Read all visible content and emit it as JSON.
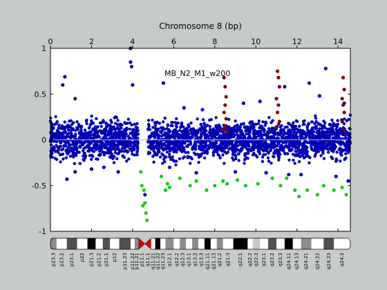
{
  "chart_data": {
    "type": "scatter",
    "title": "Chromosome 8 (bp)",
    "annotation": "MB_N2_M1_w200",
    "xlim": [
      0,
      14.6
    ],
    "ylim": [
      -1,
      1
    ],
    "x_ticks": [
      0,
      2,
      4,
      6,
      8,
      10,
      12,
      14
    ],
    "y_ticks": [
      {
        "value": 1,
        "label": "1"
      },
      {
        "value": 0.5,
        "label": "0.5"
      },
      {
        "value": 0,
        "label": "0"
      },
      {
        "value": -0.5,
        "label": "-0.5"
      },
      {
        "value": -1,
        "label": "-1"
      }
    ],
    "grid": false,
    "zero_line": true,
    "series": [
      {
        "color": "#0000b4",
        "points": [
          [
            0.7,
            0.69
          ],
          [
            0.6,
            0.6
          ],
          [
            1.2,
            0.45
          ],
          [
            3.9,
            1.0
          ],
          [
            3.9,
            0.85
          ],
          [
            3.95,
            0.8
          ],
          [
            4.0,
            0.6
          ],
          [
            5.5,
            0.62
          ],
          [
            0.8,
            -0.43
          ],
          [
            1.2,
            -0.35
          ],
          [
            2.0,
            -0.32
          ],
          [
            2.6,
            -0.3
          ],
          [
            3.3,
            -0.35
          ],
          [
            4.6,
            -0.6
          ],
          [
            5.8,
            -0.3
          ],
          [
            6.5,
            0.35
          ],
          [
            7.4,
            0.33
          ],
          [
            9.4,
            0.4
          ],
          [
            10.2,
            0.42
          ],
          [
            11.4,
            0.58
          ],
          [
            12.6,
            0.62
          ],
          [
            13.4,
            0.78
          ],
          [
            13.1,
            0.48
          ],
          [
            14.3,
            0.4
          ],
          [
            14.5,
            -0.45
          ],
          [
            13.9,
            -0.4
          ],
          [
            12.2,
            -0.38
          ],
          [
            7.1,
            -0.36
          ],
          [
            9.0,
            -0.35
          ],
          [
            10.5,
            -0.36
          ],
          [
            11.6,
            -0.38
          ]
        ]
      },
      {
        "color": "#19c819",
        "points": [
          [
            4.4,
            -0.35
          ],
          [
            4.45,
            -0.5
          ],
          [
            4.5,
            -0.72
          ],
          [
            4.55,
            -0.55
          ],
          [
            4.6,
            -0.69
          ],
          [
            4.65,
            -0.8
          ],
          [
            4.7,
            -0.88
          ],
          [
            5.4,
            -0.4
          ],
          [
            5.6,
            -0.55
          ],
          [
            5.7,
            -0.48
          ],
          [
            5.8,
            -0.52
          ],
          [
            6.3,
            -0.42
          ],
          [
            6.8,
            -0.5
          ],
          [
            7.1,
            -0.45
          ],
          [
            7.6,
            -0.55
          ],
          [
            8.0,
            -0.5
          ],
          [
            8.4,
            -0.45
          ],
          [
            8.6,
            -0.48
          ],
          [
            9.1,
            -0.44
          ],
          [
            9.5,
            -0.5
          ],
          [
            10.1,
            -0.48
          ],
          [
            10.8,
            -0.42
          ],
          [
            11.2,
            -0.5
          ],
          [
            11.5,
            -0.42
          ],
          [
            11.9,
            -0.55
          ],
          [
            12.1,
            -0.62
          ],
          [
            12.5,
            -0.55
          ],
          [
            13.0,
            -0.6
          ],
          [
            13.3,
            -0.5
          ],
          [
            13.8,
            -0.55
          ],
          [
            14.2,
            -0.52
          ],
          [
            14.4,
            -0.6
          ]
        ]
      },
      {
        "color": "#800000",
        "points": [
          [
            8.45,
            0.68
          ],
          [
            8.5,
            0.58
          ],
          [
            8.55,
            0.47
          ],
          [
            8.5,
            0.38
          ],
          [
            8.45,
            0.3
          ],
          [
            8.55,
            0.23
          ],
          [
            8.5,
            0.15
          ],
          [
            8.42,
            0.12
          ],
          [
            8.6,
            0.09
          ],
          [
            11.05,
            0.75
          ],
          [
            11.1,
            0.68
          ],
          [
            11.15,
            0.58
          ],
          [
            11.0,
            0.45
          ],
          [
            11.1,
            0.38
          ],
          [
            11.05,
            0.3
          ],
          [
            11.15,
            0.2
          ],
          [
            11.0,
            0.14
          ],
          [
            14.25,
            0.68
          ],
          [
            14.3,
            0.55
          ],
          [
            14.2,
            0.45
          ],
          [
            14.25,
            0.38
          ],
          [
            14.3,
            0.3
          ],
          [
            14.2,
            0.2
          ],
          [
            14.3,
            0.1
          ]
        ]
      }
    ],
    "ideogram": {
      "centromere_x": 4.6,
      "bands": [
        {
          "label": "p23.3",
          "start": 0.0,
          "end": 0.3,
          "stain": "gpos50"
        },
        {
          "label": "p23.2",
          "start": 0.3,
          "end": 0.8,
          "stain": "gneg"
        },
        {
          "label": "p23.1",
          "start": 0.8,
          "end": 1.3,
          "stain": "gpos75"
        },
        {
          "label": "p22",
          "start": 1.3,
          "end": 1.8,
          "stain": "gneg"
        },
        {
          "label": "p21.3",
          "start": 1.8,
          "end": 2.2,
          "stain": "gpos100"
        },
        {
          "label": "p21.2",
          "start": 2.2,
          "end": 2.55,
          "stain": "gneg"
        },
        {
          "label": "p21.1",
          "start": 2.55,
          "end": 2.9,
          "stain": "gpos75"
        },
        {
          "label": "p12",
          "start": 2.9,
          "end": 3.35,
          "stain": "gneg"
        },
        {
          "label": "p11.23",
          "start": 3.35,
          "end": 3.9,
          "stain": "gpos75"
        },
        {
          "label": "p11.22",
          "start": 3.9,
          "end": 4.1,
          "stain": "gneg"
        },
        {
          "label": "p11.21",
          "start": 4.1,
          "end": 4.3,
          "stain": "gpos50"
        },
        {
          "label": "p11.1",
          "start": 4.3,
          "end": 4.6,
          "stain": "acen"
        },
        {
          "label": "q11.1",
          "start": 4.6,
          "end": 4.9,
          "stain": "acen"
        },
        {
          "label": "q11.21",
          "start": 4.9,
          "end": 5.1,
          "stain": "gneg"
        },
        {
          "label": "q11.22",
          "start": 5.1,
          "end": 5.35,
          "stain": "gpos100"
        },
        {
          "label": "q11.23",
          "start": 5.35,
          "end": 5.6,
          "stain": "gneg"
        },
        {
          "label": "q12.1",
          "start": 5.6,
          "end": 6.0,
          "stain": "gpos50"
        },
        {
          "label": "q12.2",
          "start": 6.0,
          "end": 6.3,
          "stain": "gneg"
        },
        {
          "label": "q12.3",
          "start": 6.3,
          "end": 6.6,
          "stain": "gpos50"
        },
        {
          "label": "q13.1",
          "start": 6.6,
          "end": 6.9,
          "stain": "gneg"
        },
        {
          "label": "q13.2",
          "start": 6.9,
          "end": 7.2,
          "stain": "gpos50"
        },
        {
          "label": "q13.3",
          "start": 7.2,
          "end": 7.5,
          "stain": "gneg"
        },
        {
          "label": "q21.11",
          "start": 7.5,
          "end": 7.8,
          "stain": "gpos100"
        },
        {
          "label": "q21.13",
          "start": 7.8,
          "end": 8.1,
          "stain": "gneg"
        },
        {
          "label": "q21.2",
          "start": 8.1,
          "end": 8.4,
          "stain": "gpos50"
        },
        {
          "label": "q21.3",
          "start": 8.4,
          "end": 8.9,
          "stain": "gneg"
        },
        {
          "label": "q22.1",
          "start": 8.9,
          "end": 9.6,
          "stain": "gpos100"
        },
        {
          "label": "q22.2",
          "start": 9.6,
          "end": 9.85,
          "stain": "gneg"
        },
        {
          "label": "q22.3",
          "start": 9.85,
          "end": 10.2,
          "stain": "gpos25"
        },
        {
          "label": "q23.1",
          "start": 10.2,
          "end": 10.6,
          "stain": "gneg"
        },
        {
          "label": "q23.2",
          "start": 10.6,
          "end": 11.0,
          "stain": "gpos75"
        },
        {
          "label": "q23.3",
          "start": 11.0,
          "end": 11.4,
          "stain": "gneg"
        },
        {
          "label": "q24.11",
          "start": 11.4,
          "end": 11.8,
          "stain": "gpos100"
        },
        {
          "label": "q24.13",
          "start": 11.8,
          "end": 12.2,
          "stain": "gneg"
        },
        {
          "label": "q24.21",
          "start": 12.2,
          "end": 12.7,
          "stain": "gpos50"
        },
        {
          "label": "q24.22",
          "start": 12.7,
          "end": 13.3,
          "stain": "gneg"
        },
        {
          "label": "q24.23",
          "start": 13.3,
          "end": 13.8,
          "stain": "gpos75"
        },
        {
          "label": "q24.3",
          "start": 13.8,
          "end": 14.6,
          "stain": "gneg"
        }
      ]
    }
  }
}
